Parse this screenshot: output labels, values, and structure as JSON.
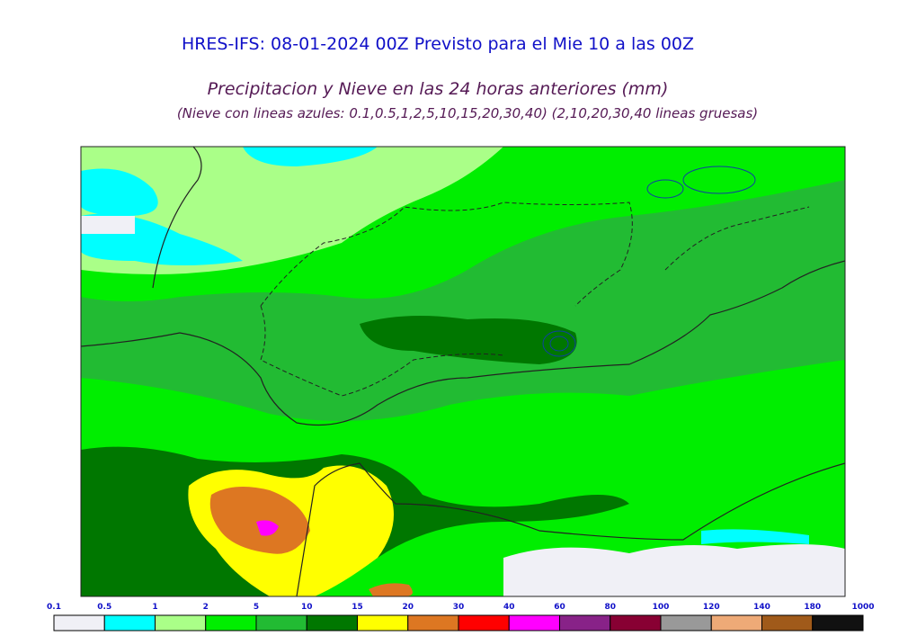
{
  "header": {
    "title": "HRES-IFS: 08-01-2024 00Z Previsto para el Mie 10 a las 00Z",
    "subtitle": "Precipitacion y Nieve en las 24 horas anteriores (mm)",
    "note": "(Nieve con lineas azules: 0.1,0.5,1,2,5,10,15,20,30,40)  (2,10,20,30,40 lineas gruesas)"
  },
  "colorbar": {
    "ticks": [
      0.1,
      0.5,
      1,
      2,
      5,
      10,
      15,
      20,
      30,
      40,
      60,
      80,
      100,
      120,
      140,
      180,
      1000
    ],
    "colors": [
      "#f0f0f6",
      "#00ffff",
      "#aaff88",
      "#00ee00",
      "#22bb33",
      "#007700",
      "#ffff00",
      "#dd7722",
      "#ff0000",
      "#ff00ff",
      "#882288",
      "#880033",
      "#999999",
      "#eeaa77",
      "#a05a1a",
      "#111111"
    ]
  }
}
